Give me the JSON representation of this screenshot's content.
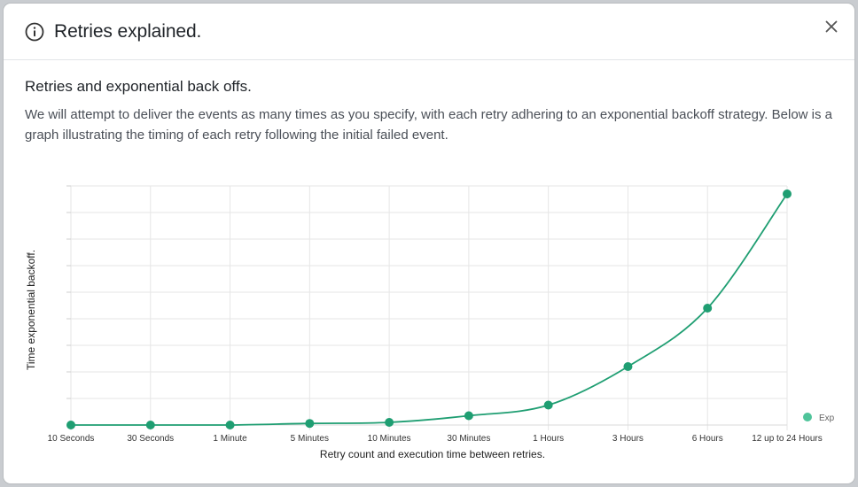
{
  "modal": {
    "title": "Retries explained.",
    "icons": {
      "header": "info-icon",
      "close": "close-icon"
    }
  },
  "content": {
    "heading": "Retries and exponential back offs.",
    "description": "We will attempt to deliver the events as many times as you specify, with each retry adhering to an exponential backoff strategy. Below is a graph illustrating the timing of each retry following the initial failed event."
  },
  "chart_data": {
    "type": "line",
    "categories": [
      "10 Seconds",
      "30 Seconds",
      "1 Minute",
      "5 Minutes",
      "10 Minutes",
      "30 Minutes",
      "1 Hours",
      "3 Hours",
      "6 Hours",
      "12 up to 24 Hours"
    ],
    "series": [
      {
        "name": "Exp",
        "values": [
          0,
          0,
          0,
          0.6,
          1,
          3.5,
          7.5,
          22,
          44,
          87
        ]
      }
    ],
    "xlabel": "Retry count and execution time between retries.",
    "ylabel": "Time exponential backoff.",
    "ylim": [
      0,
      90
    ],
    "grid": true,
    "legend": "bottom-right",
    "color": "#1f9e72",
    "legend_color": "#4fc49a"
  }
}
